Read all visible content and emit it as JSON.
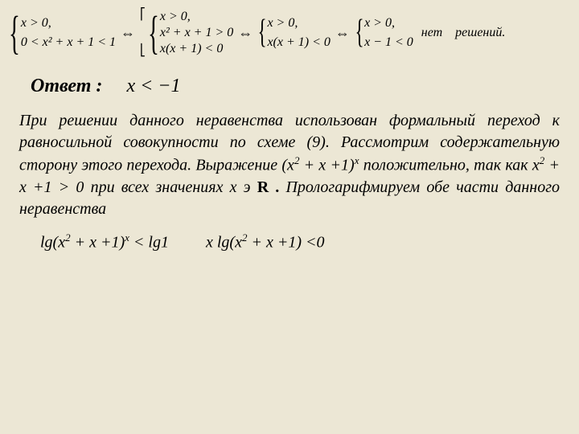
{
  "background_color": "#ece7d5",
  "text_color": "#000000",
  "formula": {
    "sys1": {
      "l1": "x > 0,",
      "l2": "0 < x² + x + 1 < 1"
    },
    "arr": "⇔",
    "sys2": {
      "l1": "x > 0,",
      "l2": "x² + x + 1 > 0",
      "l3": "x(x + 1) < 0"
    },
    "sys3": {
      "l1": "x > 0,",
      "l2": "x(x + 1) < 0"
    },
    "sys4": {
      "l1": "x > 0,",
      "l2": "x − 1 < 0"
    },
    "nores": "нет    решений."
  },
  "answer": {
    "label": "Ответ :",
    "val": "x < −1"
  },
  "paragraph": {
    "t1": "При решении данного неравенства использован формальный переход к равносильной совокупности по схеме (9). Рассмотрим содержательную сторону этого перехода. Выражение (х",
    "t2": " + х +1)",
    "t3": " положительно, так как х",
    "t4": " + х +1 > 0 при всех значениях х э ",
    "bold": "R .",
    "t5": " Прологарифмируем обе части данного неравенства"
  },
  "logline": {
    "left_a": "lg(x",
    "left_b": " + x +1)",
    "left_c": " < lg1",
    "right_a": "x lg(x",
    "right_b": " + x +1) <0"
  }
}
